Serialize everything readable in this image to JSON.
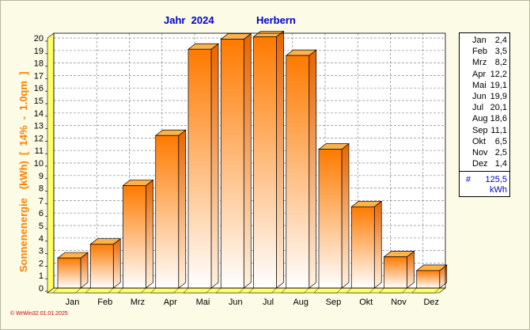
{
  "chart_data": {
    "type": "bar",
    "title_year": "Jahr  2024",
    "title_location": "Herbern",
    "ylabel_main": "Sonnenenergie   (kWh)",
    "ylabel_sub": "[  14%  -  1.0qm  ]",
    "categories": [
      "Jan",
      "Feb",
      "Mrz",
      "Apr",
      "Mai",
      "Jun",
      "Jul",
      "Aug",
      "Sep",
      "Okt",
      "Nov",
      "Dez"
    ],
    "values": [
      2.4,
      3.5,
      8.2,
      12.2,
      19.1,
      19.9,
      20.1,
      18.6,
      11.1,
      6.5,
      2.5,
      1.4
    ],
    "value_labels": [
      "2,4",
      "3,5",
      "8,2",
      "12,2",
      "19,1",
      "19,9",
      "20,1",
      "18,6",
      "11,1",
      "6,5",
      "2,5",
      "1,4"
    ],
    "ylim": [
      0,
      20
    ],
    "yticks": [
      "0",
      "1",
      "2",
      "3",
      "4",
      "5",
      "6",
      "7",
      "8",
      "9",
      "10",
      "11",
      "12",
      "13",
      "14",
      "15",
      "16",
      "17",
      "18",
      "19",
      "20"
    ],
    "grid": true,
    "legend_placement": "right",
    "total_label": "#",
    "total_value": "125,5",
    "total_unit": "kWh",
    "colors": {
      "bar_dark": "#ff7a00",
      "bar_light": "#ffffff",
      "bar_top": "#ffb24a",
      "bar_side": "#e86400",
      "floor": "#ffff66",
      "title": "#0000cc",
      "ylabel": "#ff8000"
    }
  },
  "footer": "© WrWin32  01.01.2025"
}
